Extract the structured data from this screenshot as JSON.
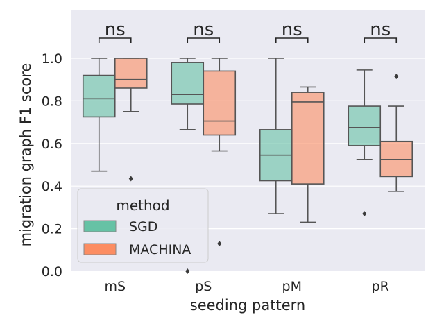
{
  "chart_data": {
    "type": "box",
    "xlabel": "seeding pattern",
    "ylabel": "migration graph F1 score",
    "categories": [
      "mS",
      "pS",
      "pM",
      "pR"
    ],
    "ylim": [
      0,
      1.0
    ],
    "yticks": [
      "0.0",
      "0.2",
      "0.4",
      "0.6",
      "0.8",
      "1.0"
    ],
    "grid": true,
    "legend": {
      "title": "method",
      "placement": "lower-left",
      "entries": [
        "SGD",
        "MACHINA"
      ]
    },
    "colors": {
      "SGD": "#66c2a5",
      "MACHINA": "#fc8d62",
      "background": "#eaeaf2",
      "box_edge": "#555555"
    },
    "series": [
      {
        "name": "SGD",
        "boxes": [
          {
            "whisker_low": 0.47,
            "q1": 0.725,
            "median": 0.81,
            "q3": 0.92,
            "whisker_high": 1.0,
            "outliers": []
          },
          {
            "whisker_low": 0.665,
            "q1": 0.785,
            "median": 0.83,
            "q3": 0.98,
            "whisker_high": 1.0,
            "outliers": [
              0.0
            ]
          },
          {
            "whisker_low": 0.27,
            "q1": 0.425,
            "median": 0.545,
            "q3": 0.665,
            "whisker_high": 1.0,
            "outliers": []
          },
          {
            "whisker_low": 0.525,
            "q1": 0.59,
            "median": 0.675,
            "q3": 0.775,
            "whisker_high": 0.945,
            "outliers": [
              0.27
            ]
          }
        ]
      },
      {
        "name": "MACHINA",
        "boxes": [
          {
            "whisker_low": 0.75,
            "q1": 0.86,
            "median": 0.9,
            "q3": 1.0,
            "whisker_high": 1.0,
            "outliers": [
              0.435
            ]
          },
          {
            "whisker_low": 0.565,
            "q1": 0.64,
            "median": 0.705,
            "q3": 0.94,
            "whisker_high": 1.0,
            "outliers": [
              0.13
            ]
          },
          {
            "whisker_low": 0.23,
            "q1": 0.41,
            "median": 0.795,
            "q3": 0.84,
            "whisker_high": 0.865,
            "outliers": []
          },
          {
            "whisker_low": 0.375,
            "q1": 0.445,
            "median": 0.525,
            "q3": 0.61,
            "whisker_high": 0.775,
            "outliers": [
              0.915
            ]
          }
        ]
      }
    ],
    "annotations": [
      {
        "category": "mS",
        "text": "ns"
      },
      {
        "category": "pS",
        "text": "ns"
      },
      {
        "category": "pM",
        "text": "ns"
      },
      {
        "category": "pR",
        "text": "ns"
      }
    ]
  }
}
